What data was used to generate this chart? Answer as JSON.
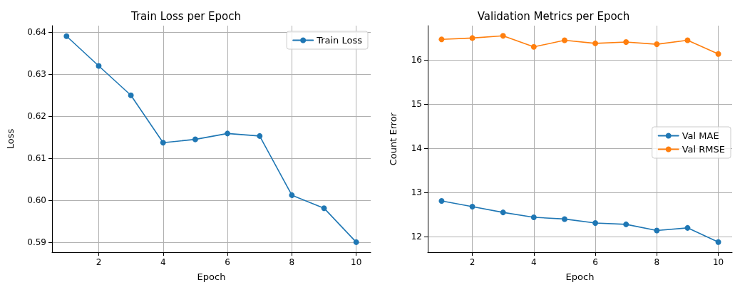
{
  "chart_data": [
    {
      "type": "line",
      "title": "Train Loss per Epoch",
      "xlabel": "Epoch",
      "ylabel": "Loss",
      "x": [
        1,
        2,
        3,
        4,
        5,
        6,
        7,
        8,
        9,
        10
      ],
      "series": [
        {
          "name": "Train Loss",
          "color": "#1f77b4",
          "values": [
            0.6391,
            0.632,
            0.625,
            0.6137,
            0.6145,
            0.6159,
            0.6153,
            0.6012,
            0.5981,
            0.59
          ]
        }
      ],
      "xlim": [
        0.55,
        10.45
      ],
      "xticks": [
        2,
        4,
        6,
        8,
        10
      ],
      "ylim": [
        0.5876,
        0.6416
      ],
      "yticks": [
        0.59,
        {
          "value": 0.6,
          "label": "0.60"
        },
        0.61,
        0.62,
        0.63,
        0.64
      ],
      "grid": true,
      "legend": "top right",
      "marker": "circle",
      "line_style": "solid"
    },
    {
      "type": "line",
      "title": "Validation Metrics per Epoch",
      "xlabel": "Epoch",
      "ylabel": "Count Error",
      "x": [
        1,
        2,
        3,
        4,
        5,
        6,
        7,
        8,
        9,
        10
      ],
      "series": [
        {
          "name": "Val MAE",
          "color": "#1f77b4",
          "values": [
            12.81,
            12.68,
            12.55,
            12.44,
            12.4,
            12.31,
            12.28,
            12.14,
            12.2,
            11.88
          ]
        },
        {
          "name": "Val RMSE",
          "color": "#ff7f0e",
          "values": [
            16.46,
            16.49,
            16.54,
            16.29,
            16.44,
            16.37,
            16.4,
            16.35,
            16.44,
            16.13
          ]
        }
      ],
      "xlim": [
        0.55,
        10.45
      ],
      "xticks": [
        2,
        4,
        6,
        8,
        10
      ],
      "ylim": [
        11.65,
        16.77
      ],
      "yticks": [
        12,
        13,
        14,
        15,
        16
      ],
      "grid": true,
      "legend": "right",
      "marker": "circle",
      "line_style": "solid"
    }
  ]
}
